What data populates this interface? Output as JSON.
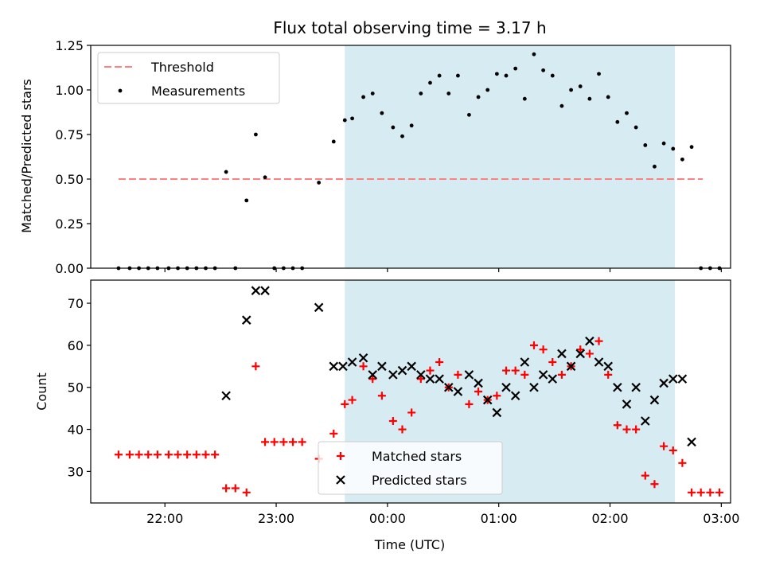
{
  "chart_data": [
    {
      "type": "scatter",
      "title": "Flux total observing time = 3.17 h",
      "ylabel": "Matched/Predicted stars",
      "xlabel": "",
      "ylim": [
        0,
        1.25
      ],
      "yticks": [
        "0.00",
        "0.25",
        "0.50",
        "0.75",
        "1.00",
        "1.25"
      ],
      "x_axis": "time UTC",
      "xlim": [
        "21:20",
        "03:05"
      ],
      "xticks": [
        "22:00",
        "23:00",
        "00:00",
        "01:00",
        "02:00",
        "03:00"
      ],
      "xtick_labels_shown": false,
      "grid": false,
      "legend_position": "top-left",
      "shaded_span": {
        "start": "23:37",
        "end": "02:35",
        "color": "#add8e6"
      },
      "threshold": {
        "name": "Threshold",
        "value": 0.5,
        "start": "21:35",
        "end": "02:50",
        "color": "#ff8080",
        "style": "dashed"
      },
      "series": [
        {
          "name": "Measurements",
          "marker": "dot",
          "color": "#000000",
          "points": [
            [
              "21:35",
              0.0
            ],
            [
              "21:41",
              0.0
            ],
            [
              "21:46",
              0.0
            ],
            [
              "21:51",
              0.0
            ],
            [
              "21:56",
              0.0
            ],
            [
              "22:02",
              0.0
            ],
            [
              "22:07",
              0.0
            ],
            [
              "22:12",
              0.0
            ],
            [
              "22:17",
              0.0
            ],
            [
              "22:22",
              0.0
            ],
            [
              "22:27",
              0.0
            ],
            [
              "22:33",
              0.54
            ],
            [
              "22:38",
              0.0
            ],
            [
              "22:44",
              0.38
            ],
            [
              "22:49",
              0.75
            ],
            [
              "22:54",
              0.51
            ],
            [
              "22:59",
              0.0
            ],
            [
              "23:04",
              0.0
            ],
            [
              "23:09",
              0.0
            ],
            [
              "23:14",
              0.0
            ],
            [
              "23:23",
              0.48
            ],
            [
              "23:31",
              0.71
            ],
            [
              "23:37",
              0.83
            ],
            [
              "23:41",
              0.84
            ],
            [
              "23:47",
              0.96
            ],
            [
              "23:52",
              0.98
            ],
            [
              "23:57",
              0.87
            ],
            [
              "00:03",
              0.79
            ],
            [
              "00:08",
              0.74
            ],
            [
              "00:13",
              0.8
            ],
            [
              "00:18",
              0.98
            ],
            [
              "00:23",
              1.04
            ],
            [
              "00:28",
              1.08
            ],
            [
              "00:33",
              0.98
            ],
            [
              "00:38",
              1.08
            ],
            [
              "00:44",
              0.86
            ],
            [
              "00:49",
              0.96
            ],
            [
              "00:54",
              1.0
            ],
            [
              "00:59",
              1.09
            ],
            [
              "01:04",
              1.08
            ],
            [
              "01:09",
              1.12
            ],
            [
              "01:14",
              0.95
            ],
            [
              "01:19",
              1.2
            ],
            [
              "01:24",
              1.11
            ],
            [
              "01:29",
              1.08
            ],
            [
              "01:34",
              0.91
            ],
            [
              "01:39",
              1.0
            ],
            [
              "01:44",
              1.02
            ],
            [
              "01:49",
              0.95
            ],
            [
              "01:54",
              1.09
            ],
            [
              "01:59",
              0.96
            ],
            [
              "02:04",
              0.82
            ],
            [
              "02:09",
              0.87
            ],
            [
              "02:14",
              0.79
            ],
            [
              "02:19",
              0.69
            ],
            [
              "02:24",
              0.57
            ],
            [
              "02:29",
              0.7
            ],
            [
              "02:34",
              0.67
            ],
            [
              "02:39",
              0.61
            ],
            [
              "02:44",
              0.68
            ],
            [
              "02:49",
              0.0
            ],
            [
              "02:54",
              0.0
            ],
            [
              "02:59",
              0.0
            ]
          ]
        }
      ]
    },
    {
      "type": "scatter",
      "title": "",
      "ylabel": "Count",
      "xlabel": "Time (UTC)",
      "ylim": [
        22.5,
        75.5
      ],
      "yticks": [
        "30",
        "40",
        "50",
        "60",
        "70"
      ],
      "x_axis": "time UTC",
      "xlim": [
        "21:20",
        "03:05"
      ],
      "xticks": [
        "22:00",
        "23:00",
        "00:00",
        "01:00",
        "02:00",
        "03:00"
      ],
      "xtick_labels_shown": true,
      "grid": false,
      "legend_position": "bottom-center",
      "shaded_span": {
        "start": "23:37",
        "end": "02:35",
        "color": "#add8e6"
      },
      "series": [
        {
          "name": "Matched stars",
          "marker": "plus",
          "color": "#ff0000",
          "points": [
            [
              "21:35",
              34
            ],
            [
              "21:41",
              34
            ],
            [
              "21:46",
              34
            ],
            [
              "21:51",
              34
            ],
            [
              "21:56",
              34
            ],
            [
              "22:02",
              34
            ],
            [
              "22:07",
              34
            ],
            [
              "22:12",
              34
            ],
            [
              "22:17",
              34
            ],
            [
              "22:22",
              34
            ],
            [
              "22:27",
              34
            ],
            [
              "22:33",
              26
            ],
            [
              "22:38",
              26
            ],
            [
              "22:44",
              25
            ],
            [
              "22:49",
              55
            ],
            [
              "22:54",
              37
            ],
            [
              "22:59",
              37
            ],
            [
              "23:04",
              37
            ],
            [
              "23:09",
              37
            ],
            [
              "23:14",
              37
            ],
            [
              "23:23",
              33
            ],
            [
              "23:31",
              39
            ],
            [
              "23:37",
              46
            ],
            [
              "23:41",
              47
            ],
            [
              "23:47",
              55
            ],
            [
              "23:52",
              52
            ],
            [
              "23:57",
              48
            ],
            [
              "00:03",
              42
            ],
            [
              "00:08",
              40
            ],
            [
              "00:13",
              44
            ],
            [
              "00:18",
              52
            ],
            [
              "00:23",
              54
            ],
            [
              "00:28",
              56
            ],
            [
              "00:33",
              50
            ],
            [
              "00:38",
              53
            ],
            [
              "00:44",
              46
            ],
            [
              "00:49",
              49
            ],
            [
              "00:54",
              47
            ],
            [
              "00:59",
              48
            ],
            [
              "01:04",
              54
            ],
            [
              "01:09",
              54
            ],
            [
              "01:14",
              53
            ],
            [
              "01:19",
              60
            ],
            [
              "01:24",
              59
            ],
            [
              "01:29",
              56
            ],
            [
              "01:34",
              53
            ],
            [
              "01:39",
              55
            ],
            [
              "01:44",
              59
            ],
            [
              "01:49",
              58
            ],
            [
              "01:54",
              61
            ],
            [
              "01:59",
              53
            ],
            [
              "02:04",
              41
            ],
            [
              "02:09",
              40
            ],
            [
              "02:14",
              40
            ],
            [
              "02:19",
              29
            ],
            [
              "02:24",
              27
            ],
            [
              "02:29",
              36
            ],
            [
              "02:34",
              35
            ],
            [
              "02:39",
              32
            ],
            [
              "02:44",
              25
            ],
            [
              "02:49",
              25
            ],
            [
              "02:54",
              25
            ],
            [
              "02:59",
              25
            ]
          ]
        },
        {
          "name": "Predicted stars",
          "marker": "x",
          "color": "#000000",
          "points": [
            [
              "22:33",
              48
            ],
            [
              "22:44",
              66
            ],
            [
              "22:49",
              73
            ],
            [
              "22:54",
              73
            ],
            [
              "23:23",
              69
            ],
            [
              "23:31",
              55
            ],
            [
              "23:36",
              55
            ],
            [
              "23:41",
              56
            ],
            [
              "23:47",
              57
            ],
            [
              "23:52",
              53
            ],
            [
              "23:57",
              55
            ],
            [
              "00:03",
              53
            ],
            [
              "00:08",
              54
            ],
            [
              "00:13",
              55
            ],
            [
              "00:18",
              53
            ],
            [
              "00:23",
              52
            ],
            [
              "00:28",
              52
            ],
            [
              "00:33",
              50
            ],
            [
              "00:38",
              49
            ],
            [
              "00:44",
              53
            ],
            [
              "00:49",
              51
            ],
            [
              "00:54",
              47
            ],
            [
              "00:59",
              44
            ],
            [
              "01:04",
              50
            ],
            [
              "01:09",
              48
            ],
            [
              "01:14",
              56
            ],
            [
              "01:19",
              50
            ],
            [
              "01:24",
              53
            ],
            [
              "01:29",
              52
            ],
            [
              "01:34",
              58
            ],
            [
              "01:39",
              55
            ],
            [
              "01:44",
              58
            ],
            [
              "01:49",
              61
            ],
            [
              "01:54",
              56
            ],
            [
              "01:59",
              55
            ],
            [
              "02:04",
              50
            ],
            [
              "02:09",
              46
            ],
            [
              "02:14",
              50
            ],
            [
              "02:19",
              42
            ],
            [
              "02:24",
              47
            ],
            [
              "02:29",
              51
            ],
            [
              "02:34",
              52
            ],
            [
              "02:39",
              52
            ],
            [
              "02:44",
              37
            ]
          ]
        }
      ]
    }
  ]
}
